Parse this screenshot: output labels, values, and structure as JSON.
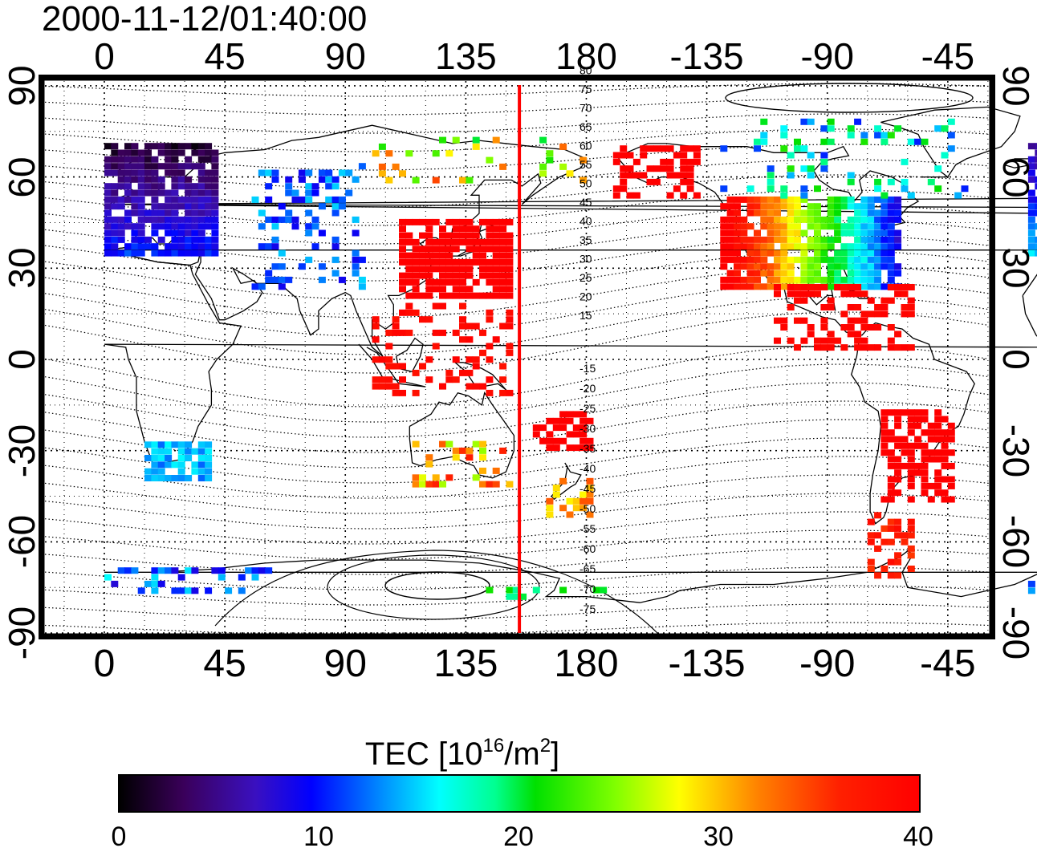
{
  "title": "2000-11-12/01:40:00",
  "axes": {
    "lon_ticks_top": [
      "0",
      "45",
      "90",
      "135",
      "180",
      "-135",
      "-90",
      "-45"
    ],
    "lon_ticks_bottom": [
      "0",
      "45",
      "90",
      "135",
      "180",
      "-135",
      "-90",
      "-45"
    ],
    "lat_ticks_left": [
      "90",
      "60",
      "30",
      "0",
      "-30",
      "-60",
      "-90"
    ],
    "lat_ticks_right": [
      "90",
      "60",
      "30",
      "0",
      "-30",
      "-60",
      "-90"
    ],
    "lon_range": [
      -20,
      340
    ],
    "lat_range": [
      -95,
      95
    ],
    "grid": "dotted"
  },
  "contour_labels": [
    "80",
    "75",
    "70",
    "65",
    "60",
    "55",
    "50",
    "45",
    "40",
    "35",
    "30",
    "25",
    "20",
    "15",
    "-15",
    "-20",
    "-25",
    "-30",
    "-35",
    "-40",
    "-45",
    "-50",
    "-55",
    "-60",
    "-65",
    "-70",
    "-75"
  ],
  "colorbar": {
    "label_prefix": "TEC  [10",
    "label_exp1": "16",
    "label_mid": "/m",
    "label_exp2": "2",
    "label_suffix": "]",
    "ticks": [
      "0",
      "10",
      "20",
      "30",
      "40"
    ],
    "min": 0,
    "max": 40
  },
  "terminator_longitude": 155,
  "colors": {
    "terminator": "#ff0000",
    "frame": "#000000"
  }
}
